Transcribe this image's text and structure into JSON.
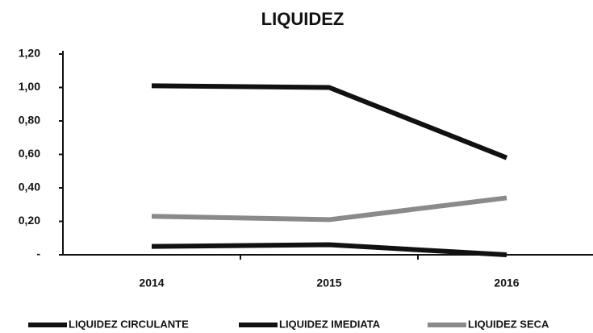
{
  "chart_data": {
    "type": "line",
    "title": "LIQUIDEZ",
    "categories": [
      "2014",
      "2015",
      "2016"
    ],
    "series": [
      {
        "name": "LIQUIDEZ CIRCULANTE",
        "color": "#111111",
        "values": [
          1.01,
          1.0,
          0.58
        ]
      },
      {
        "name": "LIQUIDEZ IMEDIATA",
        "color": "#111111",
        "values": [
          0.05,
          0.06,
          0.0
        ]
      },
      {
        "name": "LIQUIDEZ SECA",
        "color": "#8a8a8a",
        "values": [
          0.23,
          0.21,
          0.34
        ]
      }
    ],
    "ylim": [
      0,
      1.2
    ],
    "yticks": [
      {
        "value": 0,
        "label": "-"
      },
      {
        "value": 0.2,
        "label": "0,20"
      },
      {
        "value": 0.4,
        "label": "0,40"
      },
      {
        "value": 0.6,
        "label": "0,60"
      },
      {
        "value": 0.8,
        "label": "0,80"
      },
      {
        "value": 1.0,
        "label": "1,00"
      },
      {
        "value": 1.2,
        "label": "1,20"
      }
    ],
    "grid": false,
    "legend": "bottom"
  }
}
